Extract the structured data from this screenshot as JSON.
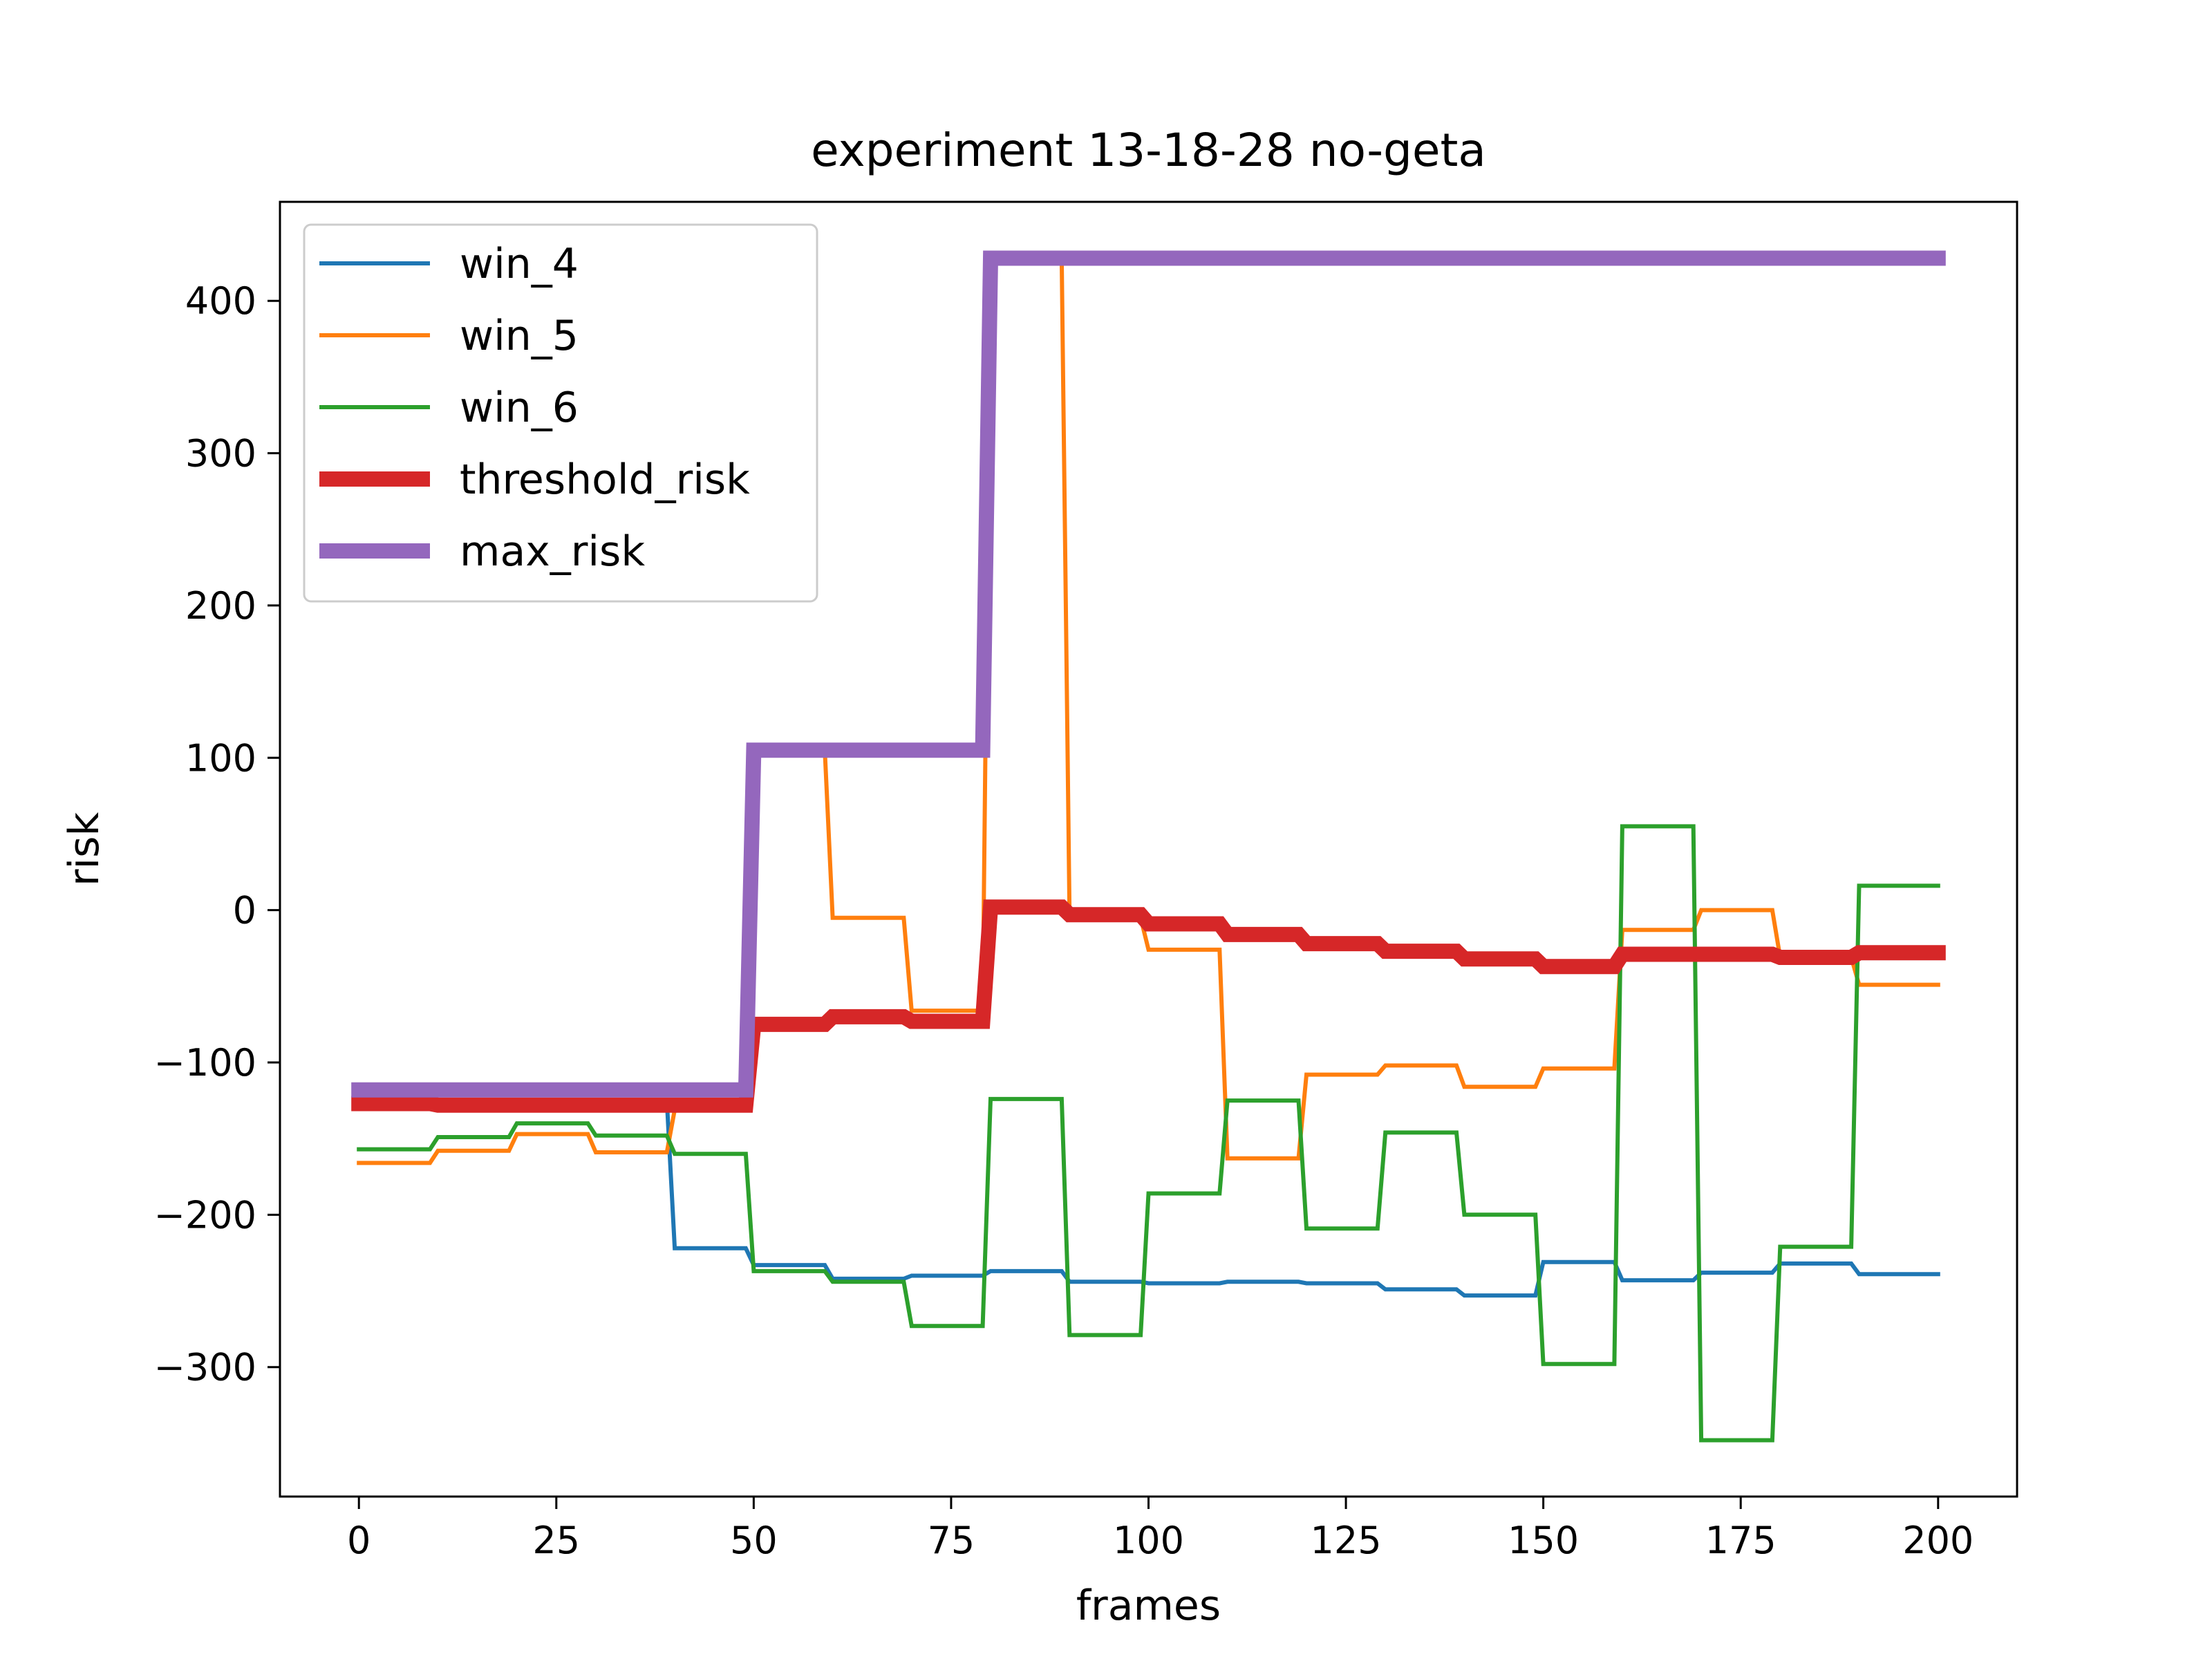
{
  "chart_data": {
    "type": "line",
    "title": "experiment 13-18-28 no-geta",
    "xlabel": "frames",
    "ylabel": "risk",
    "xlim": [
      -10,
      210
    ],
    "ylim": [
      -385,
      465
    ],
    "xticks": [
      0,
      25,
      50,
      75,
      100,
      125,
      150,
      175,
      200
    ],
    "xtick_labels": [
      "0",
      "25",
      "50",
      "75",
      "100",
      "125",
      "150",
      "175",
      "200"
    ],
    "yticks": [
      -300,
      -200,
      -100,
      0,
      100,
      200,
      300,
      400
    ],
    "ytick_labels": [
      "−300",
      "−200",
      "−100",
      "0",
      "100",
      "200",
      "300",
      "400"
    ],
    "grid": false,
    "legend_position": "top-left",
    "series": [
      {
        "name": "win_4",
        "color": "#1f77b4",
        "width": "thin",
        "points": [
          [
            0,
            -125
          ],
          [
            39,
            -125
          ],
          [
            40,
            -222
          ],
          [
            49,
            -222
          ],
          [
            50,
            -233
          ],
          [
            59,
            -233
          ],
          [
            60,
            -242
          ],
          [
            69,
            -242
          ],
          [
            70,
            -240
          ],
          [
            79,
            -240
          ],
          [
            80,
            -237
          ],
          [
            89,
            -237
          ],
          [
            90,
            -244
          ],
          [
            99,
            -244
          ],
          [
            100,
            -245
          ],
          [
            109,
            -245
          ],
          [
            110,
            -244
          ],
          [
            119,
            -244
          ],
          [
            120,
            -245
          ],
          [
            129,
            -245
          ],
          [
            130,
            -249
          ],
          [
            139,
            -249
          ],
          [
            140,
            -253
          ],
          [
            149,
            -253
          ],
          [
            150,
            -231
          ],
          [
            159,
            -231
          ],
          [
            160,
            -243
          ],
          [
            169,
            -243
          ],
          [
            170,
            -238
          ],
          [
            179,
            -238
          ],
          [
            180,
            -232
          ],
          [
            189,
            -232
          ],
          [
            190,
            -239
          ],
          [
            200,
            -239
          ]
        ]
      },
      {
        "name": "win_5",
        "color": "#ff7f0e",
        "width": "thin",
        "points": [
          [
            0,
            -166
          ],
          [
            9,
            -166
          ],
          [
            10,
            -158
          ],
          [
            19,
            -158
          ],
          [
            20,
            -147
          ],
          [
            29,
            -147
          ],
          [
            30,
            -159
          ],
          [
            39,
            -159
          ],
          [
            40,
            -131
          ],
          [
            49,
            -131
          ],
          [
            50,
            105
          ],
          [
            59,
            105
          ],
          [
            60,
            -5
          ],
          [
            69,
            -5
          ],
          [
            70,
            -66
          ],
          [
            79,
            -66
          ],
          [
            80,
            428
          ],
          [
            89,
            428
          ],
          [
            90,
            -5
          ],
          [
            99,
            -5
          ],
          [
            100,
            -26
          ],
          [
            109,
            -26
          ],
          [
            110,
            -163
          ],
          [
            119,
            -163
          ],
          [
            120,
            -108
          ],
          [
            129,
            -108
          ],
          [
            130,
            -102
          ],
          [
            139,
            -102
          ],
          [
            140,
            -116
          ],
          [
            149,
            -116
          ],
          [
            150,
            -104
          ],
          [
            159,
            -104
          ],
          [
            160,
            -13
          ],
          [
            169,
            -13
          ],
          [
            170,
            0
          ],
          [
            179,
            0
          ],
          [
            180,
            -31
          ],
          [
            189,
            -31
          ],
          [
            190,
            -49
          ],
          [
            200,
            -49
          ]
        ]
      },
      {
        "name": "win_6",
        "color": "#2ca02c",
        "width": "thin",
        "points": [
          [
            0,
            -157
          ],
          [
            9,
            -157
          ],
          [
            10,
            -149
          ],
          [
            19,
            -149
          ],
          [
            20,
            -140
          ],
          [
            29,
            -140
          ],
          [
            30,
            -148
          ],
          [
            39,
            -148
          ],
          [
            40,
            -160
          ],
          [
            49,
            -160
          ],
          [
            50,
            -237
          ],
          [
            59,
            -237
          ],
          [
            60,
            -244
          ],
          [
            69,
            -244
          ],
          [
            70,
            -273
          ],
          [
            79,
            -273
          ],
          [
            80,
            -124
          ],
          [
            89,
            -124
          ],
          [
            90,
            -279
          ],
          [
            99,
            -279
          ],
          [
            100,
            -186
          ],
          [
            109,
            -186
          ],
          [
            110,
            -125
          ],
          [
            119,
            -125
          ],
          [
            120,
            -209
          ],
          [
            129,
            -209
          ],
          [
            130,
            -146
          ],
          [
            139,
            -146
          ],
          [
            140,
            -200
          ],
          [
            149,
            -200
          ],
          [
            150,
            -298
          ],
          [
            159,
            -298
          ],
          [
            160,
            55
          ],
          [
            169,
            55
          ],
          [
            170,
            -348
          ],
          [
            179,
            -348
          ],
          [
            180,
            -221
          ],
          [
            189,
            -221
          ],
          [
            190,
            16
          ],
          [
            200,
            16
          ]
        ]
      },
      {
        "name": "threshold_risk",
        "color": "#d62728",
        "width": "thick",
        "points": [
          [
            0,
            -127
          ],
          [
            9,
            -127
          ],
          [
            10,
            -128
          ],
          [
            39,
            -128
          ],
          [
            40,
            -128
          ],
          [
            49,
            -128
          ],
          [
            50,
            -75
          ],
          [
            59,
            -75
          ],
          [
            60,
            -70
          ],
          [
            69,
            -70
          ],
          [
            70,
            -73
          ],
          [
            79,
            -73
          ],
          [
            80,
            2
          ],
          [
            89,
            2
          ],
          [
            90,
            -3
          ],
          [
            99,
            -3
          ],
          [
            100,
            -9
          ],
          [
            109,
            -9
          ],
          [
            110,
            -16
          ],
          [
            119,
            -16
          ],
          [
            120,
            -22
          ],
          [
            129,
            -22
          ],
          [
            130,
            -27
          ],
          [
            139,
            -27
          ],
          [
            140,
            -32
          ],
          [
            149,
            -32
          ],
          [
            150,
            -37
          ],
          [
            159,
            -37
          ],
          [
            160,
            -29
          ],
          [
            169,
            -29
          ],
          [
            170,
            -29
          ],
          [
            179,
            -29
          ],
          [
            180,
            -31
          ],
          [
            189,
            -31
          ],
          [
            190,
            -28
          ],
          [
            200,
            -28
          ]
        ]
      },
      {
        "name": "max_risk",
        "color": "#9467bd",
        "width": "thick",
        "points": [
          [
            0,
            -118
          ],
          [
            49,
            -118
          ],
          [
            50,
            105
          ],
          [
            79,
            105
          ],
          [
            80,
            428
          ],
          [
            200,
            428
          ]
        ]
      }
    ]
  }
}
